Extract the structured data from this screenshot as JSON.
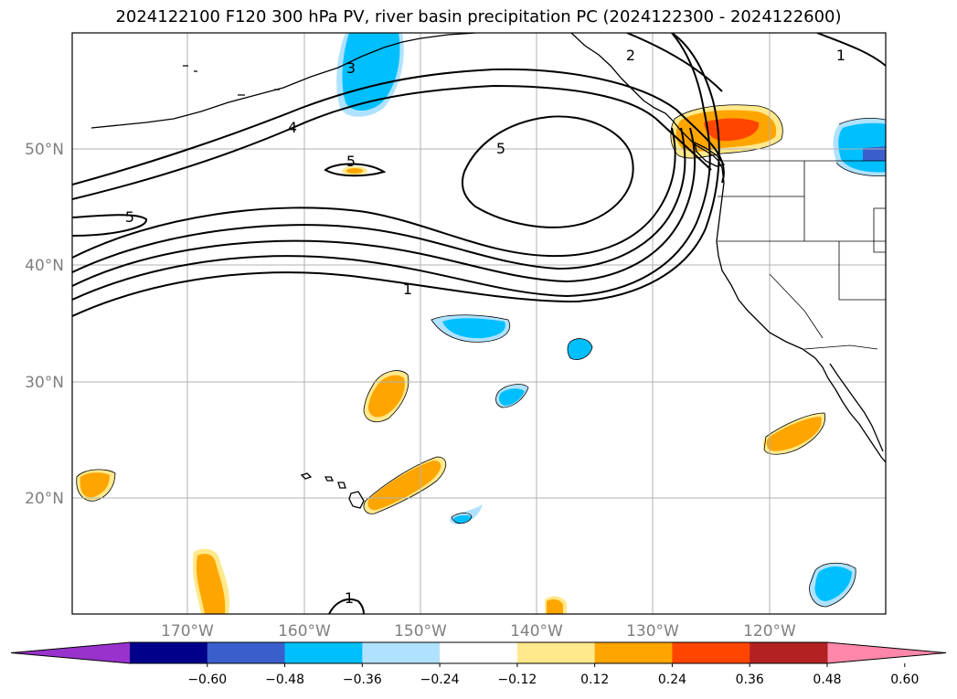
{
  "title": "2024122100 F120 300 hPa PV, river basin precipitation PC (2024122300 - 2024122600)",
  "lat_labels": [
    "50°N",
    "40°N",
    "30°N",
    "20°N"
  ],
  "lon_labels": [
    "170°W",
    "160°W",
    "150°W",
    "140°W",
    "130°W",
    "120°W"
  ],
  "contour_labels": [
    "3",
    "4",
    "5",
    "5",
    "5",
    "1",
    "2",
    "1",
    "1"
  ],
  "colorbar": {
    "ticks": [
      "−0.60",
      "−0.48",
      "−0.36",
      "−0.24",
      "−0.12",
      "0.12",
      "0.24",
      "0.36",
      "0.48",
      "0.60"
    ],
    "colors": [
      "#9932cc",
      "#00008b",
      "#3a5fcd",
      "#00bfff",
      "#b0e2ff",
      "#ffffff",
      "#ffe98c",
      "#ffa500",
      "#ff4500",
      "#b22222",
      "#ff88aa"
    ]
  },
  "colors": {
    "orange": "#ffa500",
    "light_yellow": "#ffe98c",
    "red_orange": "#ff4500",
    "deep_sky_blue": "#00bfff",
    "light_blue": "#b0e2ff",
    "royal_blue": "#3a5fcd",
    "grid": "#b0b0b0"
  }
}
